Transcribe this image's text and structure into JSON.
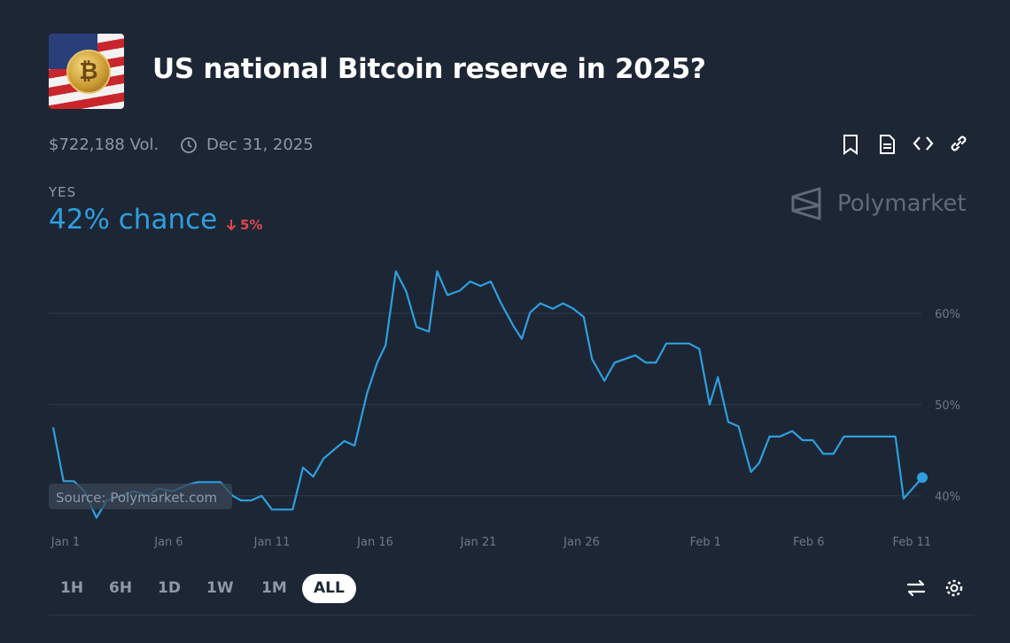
{
  "header": {
    "title": "US national Bitcoin reserve in 2025?",
    "volume": "$722,188 Vol.",
    "end_date": "Dec 31, 2025"
  },
  "outcome": {
    "label": "YES",
    "chance": "42% chance",
    "change": "5%"
  },
  "watermark": "Polymarket",
  "source": "Source: Polymarket.com",
  "ranges": [
    "1H",
    "6H",
    "1D",
    "1W",
    "1M",
    "ALL"
  ],
  "selected_range": 5,
  "chart_data": {
    "type": "line",
    "x": [
      -0.6,
      -0.1,
      0.4,
      0.9,
      1.5,
      2.0,
      2.7,
      3.3,
      4.0,
      4.5,
      5.2,
      5.9,
      6.4,
      7.5,
      8.1,
      8.5,
      9.0,
      9.5,
      10.0,
      11.0,
      11.5,
      12.0,
      12.5,
      13.5,
      14.0,
      14.6,
      15.1,
      15.5,
      16.0,
      16.5,
      17.0,
      17.6,
      18.0,
      18.5,
      19.1,
      19.6,
      20.1,
      20.6,
      21.1,
      21.7,
      22.1,
      22.5,
      23.0,
      23.6,
      24.1,
      24.6,
      25.1,
      25.5,
      26.1,
      26.6,
      27.6,
      28.1,
      28.6,
      29.1,
      30.2,
      30.7,
      31.2,
      31.6,
      32.1,
      32.6,
      33.2,
      33.6,
      34.1,
      34.6,
      35.2,
      35.7,
      36.2,
      36.7,
      37.2,
      37.7,
      40.2,
      40.6,
      41.5
    ],
    "series": [
      {
        "name": "YES",
        "color": "#2e9fe0",
        "values": [
          47.5,
          41.6,
          41.6,
          40.5,
          37.6,
          39.5,
          40,
          40.5,
          40,
          40.8,
          40.5,
          41.2,
          41.5,
          41.5,
          40,
          39.5,
          39.5,
          40,
          38.5,
          38.5,
          43.1,
          42.1,
          44.1,
          46,
          45.5,
          51.2,
          54.6,
          56.5,
          64.6,
          62.4,
          58.5,
          58,
          64.6,
          62,
          62.5,
          63.5,
          63,
          63.5,
          61.1,
          58.6,
          57.2,
          60.1,
          61.1,
          60.5,
          61.1,
          60.5,
          59.6,
          55,
          52.6,
          54.6,
          55.4,
          54.6,
          54.6,
          56.7,
          56.7,
          56.1,
          50,
          53,
          48.1,
          47.6,
          42.6,
          43.6,
          46.5,
          46.5,
          47.1,
          46.1,
          46.1,
          44.6,
          44.6,
          46.5,
          46.5,
          39.7,
          42
        ]
      }
    ],
    "xlim": [
      -0.6,
      41.5
    ],
    "xticks": [
      {
        "value": 0,
        "label": "Jan 1"
      },
      {
        "value": 5,
        "label": "Jan 6"
      },
      {
        "value": 10,
        "label": "Jan 11"
      },
      {
        "value": 15,
        "label": "Jan 16"
      },
      {
        "value": 20,
        "label": "Jan 21"
      },
      {
        "value": 25,
        "label": "Jan 26"
      },
      {
        "value": 31,
        "label": "Feb 1"
      },
      {
        "value": 36,
        "label": "Feb 6"
      },
      {
        "value": 41,
        "label": "Feb 11"
      }
    ],
    "ylim": [
      36,
      66
    ],
    "yticks": [
      {
        "value": 40,
        "label": "40%"
      },
      {
        "value": 50,
        "label": "50%"
      },
      {
        "value": 60,
        "label": "60%"
      }
    ],
    "grid": true
  }
}
